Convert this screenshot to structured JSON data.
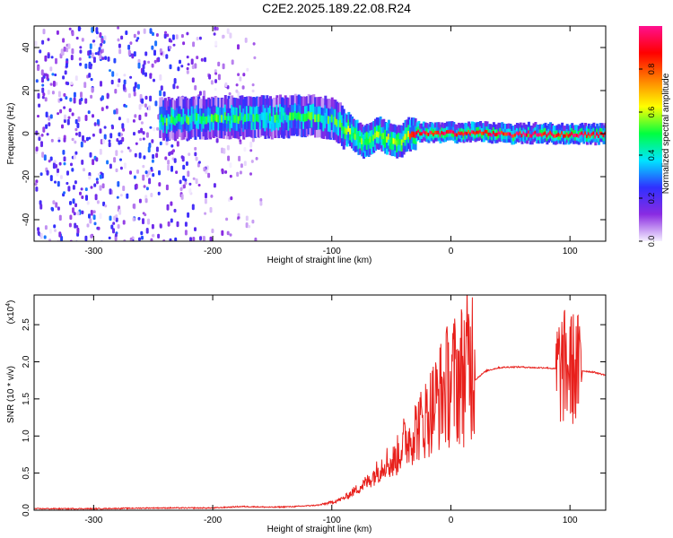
{
  "title": "C2E2.2025.189.22.08.R24",
  "chart_data": [
    {
      "type": "heatmap",
      "xlabel": "Height of straight line (km)",
      "ylabel": "Frequency (Hz)",
      "xlim": [
        -350,
        130
      ],
      "ylim": [
        -50,
        50
      ],
      "xticks": [
        -300,
        -200,
        -100,
        0,
        100
      ],
      "yticks": [
        -40,
        -20,
        0,
        20,
        40
      ],
      "colorbar": {
        "label": "Normalized spectral amplitude",
        "range": [
          0.0,
          1.0
        ],
        "ticks": [
          "0.0",
          "0.2",
          "0.4",
          "0.6",
          "0.8"
        ],
        "colormap": [
          "#f5f0ff",
          "#8a2be2",
          "#3030ff",
          "#00e5ff",
          "#00ff40",
          "#ffff00",
          "#ff8000",
          "#ff0000",
          "#ff1090"
        ]
      },
      "band_centerline": [
        {
          "x": -245,
          "y": 8
        },
        {
          "x": -200,
          "y": 9
        },
        {
          "x": -150,
          "y": 9
        },
        {
          "x": -120,
          "y": 10
        },
        {
          "x": -100,
          "y": 8
        },
        {
          "x": -85,
          "y": 2
        },
        {
          "x": -75,
          "y": -3
        },
        {
          "x": -60,
          "y": 1
        },
        {
          "x": -45,
          "y": -3
        },
        {
          "x": -35,
          "y": 1
        },
        {
          "x": -10,
          "y": 1
        },
        {
          "x": 0,
          "y": 1
        },
        {
          "x": 130,
          "y": 0
        }
      ],
      "noise_region_x": [
        -350,
        -160
      ]
    },
    {
      "type": "line",
      "xlabel": "Height of straight line (km)",
      "ylabel": "SNR (10 * v/v)",
      "y_multiplier": "(x10",
      "y_multiplier_exp": "4",
      "xlim": [
        -350,
        130
      ],
      "ylim": [
        0,
        2.9
      ],
      "xticks": [
        -300,
        -200,
        -100,
        0,
        100
      ],
      "yticks": [
        "0.0",
        "0.5",
        "1.0",
        "1.5",
        "2.0",
        "2.5"
      ],
      "color": "#e8201c",
      "series": [
        {
          "x": [
            -350,
            -300,
            -250,
            -200,
            -175,
            -150,
            -130,
            -110,
            -100,
            -90,
            -80,
            -70,
            -60,
            -55,
            -50,
            -45,
            -40,
            -35,
            -30,
            -25,
            -20,
            -15,
            -10,
            -5,
            0,
            5,
            10,
            15,
            20,
            25,
            30,
            40,
            50,
            60,
            70,
            80,
            90,
            95,
            100,
            105,
            110,
            120,
            130
          ],
          "values": [
            0.02,
            0.02,
            0.03,
            0.03,
            0.05,
            0.04,
            0.05,
            0.07,
            0.1,
            0.15,
            0.25,
            0.35,
            0.5,
            0.6,
            0.55,
            0.65,
            0.8,
            0.85,
            0.95,
            1.0,
            1.1,
            1.2,
            1.3,
            1.4,
            1.45,
            1.5,
            1.55,
            1.65,
            1.75,
            1.82,
            1.88,
            1.92,
            1.93,
            1.93,
            1.92,
            1.92,
            1.9,
            1.92,
            1.92,
            1.9,
            1.88,
            1.86,
            1.82
          ]
        }
      ]
    }
  ]
}
